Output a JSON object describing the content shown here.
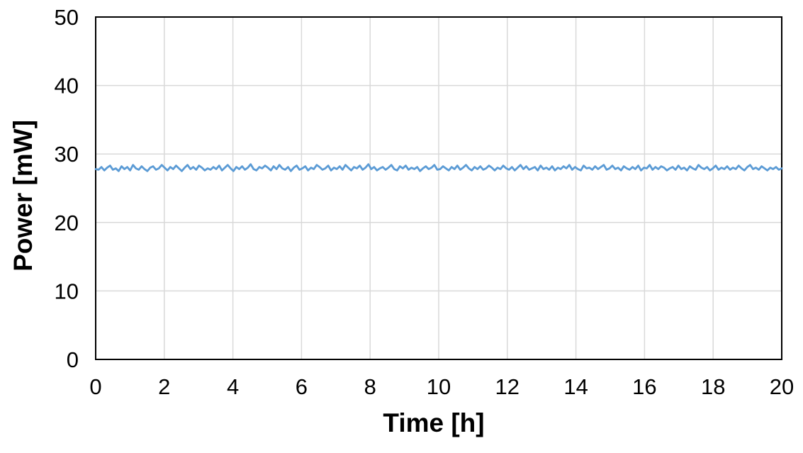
{
  "page": {
    "background": "#FFFFFF"
  },
  "chart_data": {
    "type": "line",
    "title": "",
    "xlabel": "Time [h]",
    "ylabel": "Power [mW]",
    "xlim": [
      0,
      20
    ],
    "ylim": [
      0,
      50
    ],
    "xticks": [
      0,
      2,
      4,
      6,
      8,
      10,
      12,
      14,
      16,
      18,
      20
    ],
    "yticks": [
      0,
      10,
      20,
      30,
      40,
      50
    ],
    "grid": true,
    "legend_position": "none",
    "colors": {
      "series": "#5B9BD5",
      "gridline": "#D9D9D9",
      "axis": "#000000",
      "text": "#000000"
    },
    "series": [
      {
        "name": "Power",
        "x_start": 0,
        "x_end": 20,
        "values": [
          27.8,
          27.7,
          28.1,
          27.6,
          28.0,
          28.3,
          27.7,
          27.9,
          27.5,
          28.2,
          27.8,
          28.1,
          27.6,
          28.4,
          27.9,
          27.7,
          28.2,
          27.8,
          27.5,
          28.0,
          28.2,
          27.7,
          27.9,
          28.4,
          28.0,
          27.6,
          28.1,
          27.8,
          28.3,
          27.9,
          27.5,
          28.0,
          28.4,
          27.8,
          28.1,
          27.7,
          28.3,
          28.0,
          27.6,
          27.9,
          27.7,
          28.1,
          27.8,
          28.3,
          27.6,
          28.0,
          28.4,
          27.9,
          27.5,
          28.1,
          27.8,
          28.2,
          27.7,
          28.0,
          28.5,
          27.8,
          27.6,
          28.1,
          27.9,
          28.3,
          28.0,
          27.6,
          28.2,
          27.8,
          28.4,
          27.9,
          27.7,
          28.1,
          27.5,
          28.0,
          28.3,
          27.7,
          27.9,
          28.2,
          27.6,
          28.0,
          27.8,
          28.4,
          28.1,
          27.7,
          27.9,
          28.3,
          27.6,
          28.0,
          27.8,
          28.2,
          27.7,
          28.4,
          28.0,
          27.6,
          28.1,
          27.9,
          28.3,
          27.7,
          28.0,
          28.5,
          27.8,
          28.1,
          27.6,
          27.9,
          28.1,
          27.7,
          28.0,
          28.4,
          27.8,
          27.6,
          28.2,
          27.9,
          28.3,
          27.7,
          28.0,
          27.8,
          28.1,
          27.5,
          27.9,
          28.2,
          27.8,
          28.0,
          28.4,
          27.7,
          27.8,
          28.2,
          27.9,
          27.6,
          28.1,
          27.8,
          28.3,
          27.7,
          28.0,
          28.4,
          27.9,
          27.6,
          28.1,
          27.8,
          28.2,
          27.7,
          27.9,
          28.3,
          28.0,
          27.6,
          28.0,
          27.8,
          28.3,
          27.9,
          27.7,
          28.1,
          27.6,
          28.0,
          28.4,
          27.8,
          28.2,
          27.7,
          27.9,
          28.1,
          27.6,
          28.3,
          27.8,
          28.0,
          27.7,
          28.2,
          27.6,
          28.0,
          27.8,
          28.2,
          27.9,
          28.4,
          27.7,
          28.1,
          27.8,
          27.6,
          28.3,
          27.9,
          28.0,
          27.7,
          28.2,
          27.8,
          28.1,
          28.4,
          27.7,
          27.9,
          28.3,
          27.8,
          28.0,
          27.6,
          28.2,
          27.9,
          27.7,
          28.1,
          27.8,
          28.3,
          27.6,
          28.0,
          27.9,
          28.4,
          27.7,
          28.1,
          27.8,
          28.2,
          28.0,
          27.6,
          27.9,
          28.1,
          27.7,
          28.3,
          27.8,
          28.0,
          27.6,
          28.2,
          27.9,
          27.7,
          28.4,
          28.0,
          27.8,
          28.1,
          27.6,
          27.9,
          28.3,
          27.7,
          28.0,
          27.8,
          28.2,
          27.7,
          28.0,
          27.8,
          28.3,
          27.9,
          27.6,
          28.1,
          28.4,
          27.8,
          28.0,
          27.7,
          28.2,
          27.9,
          27.6,
          28.0,
          27.8,
          28.1,
          27.7,
          27.9
        ]
      }
    ]
  }
}
